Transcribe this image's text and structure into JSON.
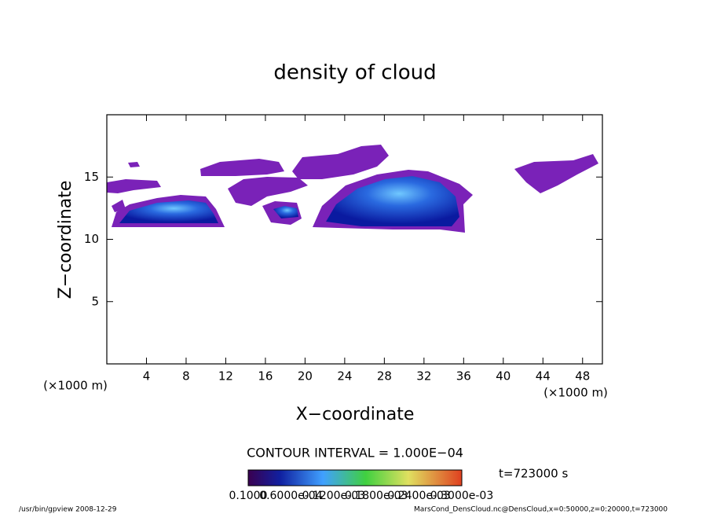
{
  "chart_data": {
    "type": "contour",
    "title": "density of cloud",
    "x_label": "X−coordinate",
    "y_label": "Z−coordinate",
    "x_unit_left": "(×1000 m)",
    "x_unit_right": "(×1000 m)",
    "xlim": [
      0,
      50
    ],
    "xticks": [
      4,
      8,
      12,
      16,
      20,
      24,
      28,
      32,
      36,
      40,
      44,
      48
    ],
    "ylim": [
      0,
      20
    ],
    "yticks": [
      5,
      10,
      15
    ],
    "contour_interval": "CONTOUR INTERVAL = 1.000E−04",
    "time": "t=723000 s",
    "colorbar_labels": [
      "0.1000",
      "0.6000e-04",
      "0.1200e-03",
      "0.1800e-03",
      "0.2400e-03",
      "0.3000e-03"
    ],
    "footer_left": "/usr/bin/gpview   2008-12-29",
    "footer_right": "MarsCond_DensCloud.nc@DensCloud,x=0:50000,z=0:20000,t=723000"
  }
}
